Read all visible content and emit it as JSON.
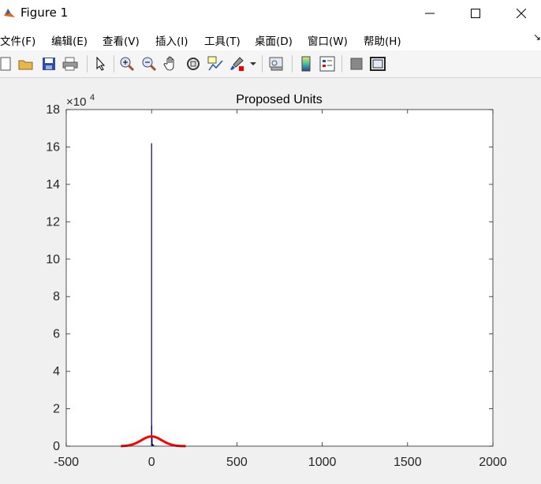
{
  "window": {
    "title": "Figure 1"
  },
  "menu": [
    {
      "label": "文件(F)",
      "id": "file"
    },
    {
      "label": "编辑(E)",
      "id": "edit"
    },
    {
      "label": "查看(V)",
      "id": "view"
    },
    {
      "label": "插入(I)",
      "id": "insert"
    },
    {
      "label": "工具(T)",
      "id": "tools"
    },
    {
      "label": "桌面(D)",
      "id": "desktop"
    },
    {
      "label": "窗口(W)",
      "id": "window"
    },
    {
      "label": "帮助(H)",
      "id": "help"
    }
  ],
  "toolbar": {
    "icons": [
      "new-figure-icon",
      "open-folder-icon",
      "save-icon",
      "print-icon",
      "pointer-icon",
      "zoom-in-icon",
      "zoom-out-icon",
      "pan-hand-icon",
      "rotate-3d-icon",
      "data-cursor-icon",
      "brush-icon",
      "link-plot-icon",
      "colorbar-icon",
      "legend-icon",
      "hide-plot-tools-icon",
      "show-plot-tools-icon"
    ]
  },
  "chart_data": {
    "type": "bar",
    "title": "Proposed Units",
    "xlabel": "",
    "ylabel": "",
    "y_exponent_label": "×10",
    "y_exponent": "4",
    "xlim": [
      -500,
      2000
    ],
    "ylim": [
      0,
      180000
    ],
    "x_ticks": [
      "-500",
      "0",
      "500",
      "1000",
      "1500",
      "2000"
    ],
    "y_ticks": [
      "0",
      "2",
      "4",
      "6",
      "8",
      "10",
      "12",
      "14",
      "16",
      "18"
    ],
    "histogram": {
      "color": "#00007f",
      "bins": [
        {
          "x": 0,
          "value": 162000
        },
        {
          "x": 1,
          "value": 11000
        },
        {
          "x": 3,
          "value": 4500
        },
        {
          "x": 6,
          "value": 1200
        },
        {
          "x": 12,
          "value": 800
        },
        {
          "x": 25,
          "value": 300
        }
      ]
    },
    "fit_curve": {
      "type": "normal-pdf",
      "color": "#ff0000",
      "mean": 0,
      "std": 60,
      "peak": 5200,
      "x_range": [
        -180,
        200
      ]
    },
    "grid": false
  }
}
